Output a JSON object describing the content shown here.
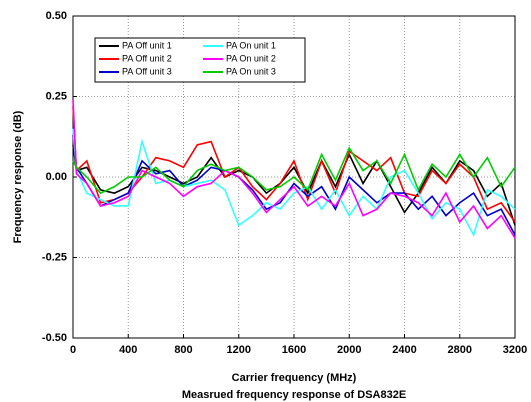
{
  "chart_data": {
    "type": "line",
    "title": "Measrued frequency response of DSA832E",
    "x_label": "Carrier frequency (MHz)",
    "y_label": "Frequency response (dB)",
    "x": [
      0,
      25,
      100,
      200,
      300,
      400,
      500,
      600,
      700,
      800,
      900,
      1000,
      1100,
      1200,
      1300,
      1400,
      1500,
      1600,
      1700,
      1800,
      1900,
      2000,
      2100,
      2200,
      2300,
      2400,
      2500,
      2600,
      2700,
      2800,
      2900,
      3000,
      3100,
      3200
    ],
    "series": [
      {
        "name": "PA Off unit 1",
        "color": "#000000",
        "values": [
          0.1,
          0.02,
          0.03,
          -0.04,
          -0.05,
          -0.03,
          0.03,
          0.02,
          0.0,
          -0.02,
          0.0,
          0.06,
          0.0,
          0.02,
          0.0,
          -0.05,
          -0.02,
          0.03,
          -0.05,
          0.05,
          -0.03,
          0.07,
          -0.02,
          0.05,
          -0.03,
          -0.11,
          -0.05,
          0.03,
          -0.02,
          0.05,
          0.02,
          -0.06,
          -0.02,
          -0.15
        ]
      },
      {
        "name": "PA Off unit 2",
        "color": "#ff0000",
        "values": [
          0.22,
          0.02,
          0.05,
          -0.08,
          -0.07,
          -0.05,
          0.0,
          0.06,
          0.05,
          0.03,
          0.1,
          0.11,
          0.0,
          0.03,
          -0.03,
          -0.07,
          -0.02,
          0.05,
          -0.07,
          0.05,
          -0.05,
          0.08,
          0.05,
          0.02,
          0.06,
          -0.05,
          -0.06,
          0.02,
          -0.02,
          0.04,
          0.0,
          -0.1,
          -0.08,
          -0.14
        ]
      },
      {
        "name": "PA Off unit 3",
        "color": "#0000cc",
        "values": [
          0.13,
          0.03,
          -0.02,
          -0.09,
          -0.07,
          -0.05,
          0.05,
          0.01,
          0.02,
          -0.03,
          -0.01,
          0.03,
          0.02,
          0.0,
          -0.04,
          -0.1,
          -0.08,
          -0.02,
          -0.06,
          -0.03,
          -0.1,
          0.0,
          -0.04,
          -0.08,
          -0.05,
          -0.05,
          -0.1,
          -0.06,
          -0.12,
          -0.08,
          -0.05,
          -0.12,
          -0.1,
          -0.18
        ]
      },
      {
        "name": "PA On unit 1",
        "color": "#33ffff",
        "values": [
          0.15,
          0.02,
          -0.05,
          -0.07,
          -0.09,
          -0.09,
          0.11,
          -0.02,
          -0.01,
          -0.03,
          -0.02,
          -0.01,
          -0.04,
          -0.15,
          -0.12,
          -0.08,
          -0.1,
          -0.05,
          -0.03,
          -0.1,
          -0.04,
          -0.12,
          -0.06,
          -0.1,
          0.0,
          0.02,
          -0.05,
          -0.13,
          -0.08,
          -0.1,
          -0.18,
          -0.04,
          -0.06,
          -0.1
        ]
      },
      {
        "name": "PA On unit 2",
        "color": "#ff00ff",
        "values": [
          0.24,
          0.01,
          -0.02,
          -0.09,
          -0.08,
          -0.06,
          0.02,
          0.0,
          -0.02,
          -0.06,
          -0.03,
          -0.02,
          0.02,
          0.0,
          -0.05,
          -0.11,
          -0.07,
          -0.03,
          -0.09,
          -0.06,
          -0.09,
          -0.02,
          -0.12,
          -0.1,
          -0.05,
          -0.06,
          -0.08,
          -0.12,
          -0.05,
          -0.14,
          -0.09,
          -0.16,
          -0.12,
          -0.19
        ]
      },
      {
        "name": "PA On unit 3",
        "color": "#00cc00",
        "values": [
          0.05,
          0.03,
          0.0,
          -0.05,
          -0.03,
          0.0,
          0.0,
          0.03,
          -0.01,
          -0.03,
          0.02,
          0.04,
          0.02,
          0.03,
          0.0,
          -0.04,
          -0.03,
          0.0,
          -0.04,
          0.07,
          -0.01,
          0.09,
          0.02,
          0.05,
          -0.02,
          0.07,
          -0.04,
          0.04,
          0.0,
          0.07,
          0.0,
          0.06,
          -0.03,
          0.03
        ]
      }
    ],
    "xlim": [
      0,
      3200
    ],
    "xticks": [
      0,
      400,
      800,
      1200,
      1600,
      2000,
      2400,
      2800,
      3200
    ],
    "ylim": [
      -0.5,
      0.5
    ],
    "yticks": [
      {
        "value": -0.5,
        "label": "-0.50"
      },
      {
        "value": -0.25,
        "label": "-0.25"
      },
      {
        "value": 0,
        "label": "0.00"
      },
      {
        "value": 0.25,
        "label": "0.25"
      },
      {
        "value": 0.5,
        "label": "0.50"
      }
    ],
    "grid": true,
    "legend": "upper-left"
  }
}
